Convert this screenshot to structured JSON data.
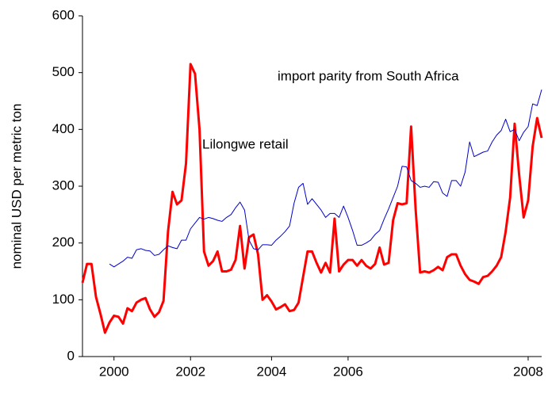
{
  "chart_data": {
    "type": "line",
    "y_label": "nominal USD per metric ton",
    "annotations": [
      "import parity from South Africa",
      "Lilongwe retail"
    ],
    "categories": [
      null,
      null,
      null,
      null,
      null,
      null,
      null,
      "2000",
      null,
      null,
      null,
      null,
      null,
      null,
      null,
      null,
      null,
      null,
      null,
      null,
      null,
      null,
      null,
      null,
      "2002",
      null,
      null,
      null,
      null,
      null,
      null,
      null,
      null,
      null,
      null,
      null,
      null,
      null,
      null,
      null,
      null,
      null,
      "2004",
      null,
      null,
      null,
      null,
      null,
      null,
      null,
      null,
      null,
      null,
      null,
      null,
      null,
      null,
      null,
      null,
      "2006",
      null,
      null,
      null,
      null,
      null,
      null,
      null,
      null,
      null,
      null,
      null,
      null,
      null,
      null,
      null,
      null,
      null,
      null,
      null,
      null,
      null,
      null,
      null,
      null,
      null,
      null,
      null,
      null,
      null,
      null,
      null,
      null,
      null,
      null,
      null,
      null,
      null,
      null,
      null,
      "2008",
      null,
      null,
      null
    ],
    "series": [
      {
        "name": "Lilongwe retail",
        "color": "#ff0000",
        "width": 3,
        "values": [
          130,
          163,
          163,
          105,
          75,
          42,
          60,
          72,
          70,
          58,
          85,
          80,
          95,
          100,
          103,
          83,
          70,
          78,
          98,
          220,
          290,
          268,
          275,
          340,
          515,
          498,
          400,
          185,
          160,
          168,
          185,
          150,
          150,
          153,
          170,
          230,
          155,
          210,
          215,
          180,
          100,
          108,
          97,
          83,
          87,
          92,
          80,
          82,
          95,
          140,
          185,
          185,
          165,
          148,
          165,
          148,
          243,
          150,
          162,
          170,
          170,
          160,
          170,
          160,
          155,
          163,
          192,
          162,
          165,
          240,
          270,
          268,
          270,
          405,
          260,
          148,
          150,
          148,
          152,
          158,
          152,
          175,
          180,
          180,
          160,
          145,
          135,
          132,
          128,
          140,
          142,
          150,
          160,
          175,
          220,
          280,
          410,
          320,
          245,
          275,
          370,
          420,
          385
        ]
      },
      {
        "name": "import parity from South Africa",
        "color": "#0000cc",
        "width": 1,
        "values": [
          null,
          null,
          null,
          null,
          null,
          null,
          163,
          158,
          163,
          168,
          175,
          173,
          188,
          190,
          187,
          186,
          178,
          180,
          188,
          195,
          192,
          190,
          205,
          205,
          225,
          235,
          245,
          242,
          245,
          243,
          240,
          238,
          245,
          250,
          262,
          272,
          258,
          205,
          190,
          188,
          197,
          197,
          196,
          205,
          212,
          220,
          230,
          270,
          298,
          305,
          268,
          278,
          268,
          258,
          245,
          252,
          252,
          245,
          265,
          245,
          222,
          196,
          196,
          200,
          205,
          215,
          222,
          242,
          260,
          280,
          300,
          335,
          334,
          310,
          305,
          298,
          300,
          298,
          308,
          307,
          288,
          282,
          310,
          310,
          300,
          325,
          378,
          352,
          356,
          360,
          362,
          378,
          390,
          398,
          418,
          396,
          400,
          380,
          395,
          405,
          445,
          442,
          470
        ]
      }
    ],
    "ylim": [
      0,
      600
    ],
    "yticks": [
      0,
      100,
      200,
      300,
      400,
      500,
      600
    ],
    "grid": false
  }
}
